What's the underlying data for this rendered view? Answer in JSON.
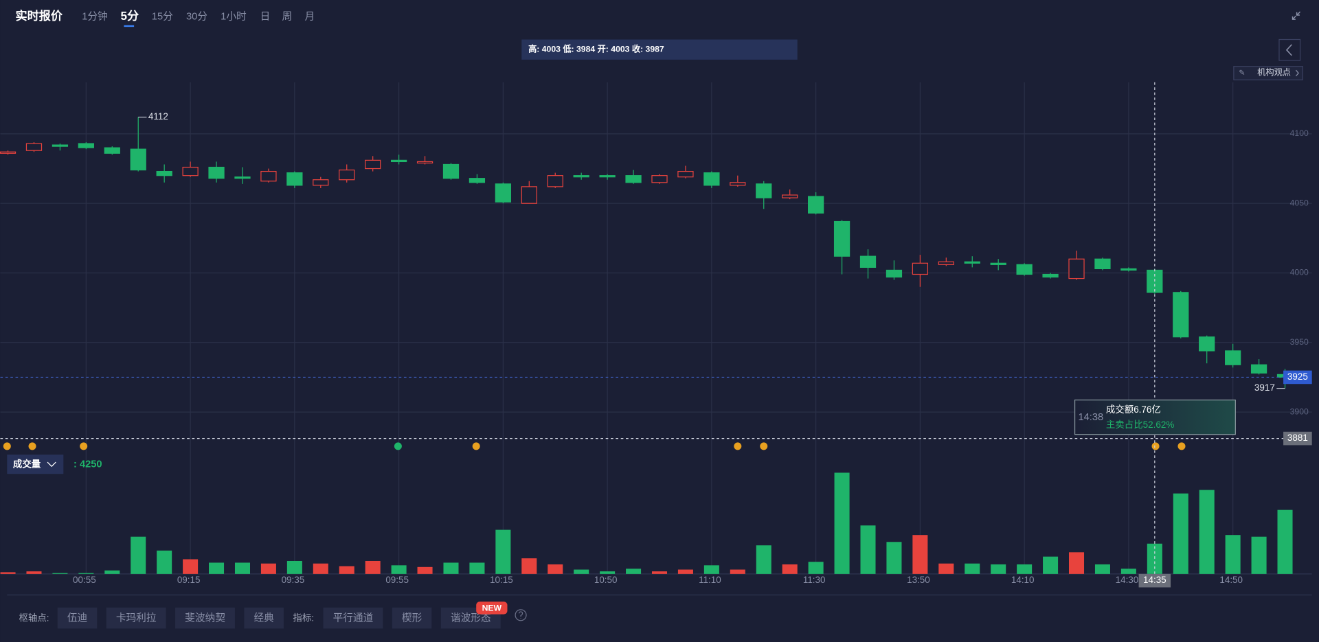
{
  "header": {
    "title": "实时报价",
    "tabs": [
      "1分钟",
      "5分",
      "15分",
      "30分",
      "1小时",
      "日",
      "周",
      "月"
    ],
    "active_tab": 1
  },
  "info_bar": "高: 4003 低: 3984 开: 4003 收: 3987",
  "side_tag": "机构观点",
  "chart_data": {
    "type": "candlestick",
    "categories": [
      null,
      null,
      null,
      "00:55",
      null,
      null,
      null,
      "09:15",
      null,
      null,
      null,
      "09:35",
      null,
      null,
      null,
      "09:55",
      null,
      null,
      null,
      "10:15",
      null,
      null,
      null,
      "10:50",
      null,
      null,
      null,
      "11:10",
      null,
      null,
      null,
      "11:30",
      null,
      null,
      null,
      "13:50",
      null,
      null,
      null,
      "14:10",
      null,
      null,
      null,
      "14:30",
      null,
      null,
      null,
      "14:50",
      null,
      null
    ],
    "open": [
      4086,
      4088,
      4092,
      4093,
      4090,
      4089,
      4073,
      4070,
      4076,
      4069,
      4066,
      4072,
      4063,
      4067,
      4075,
      4081,
      4079,
      4078,
      4068,
      4064,
      4050,
      4062,
      4070,
      4070,
      4070,
      4065,
      4069,
      4072,
      4063,
      4064,
      4054,
      4055,
      4037,
      4012,
      4002,
      3999,
      4006,
      4008,
      4007,
      4006,
      3999,
      3996,
      4010,
      4003,
      4002,
      3986,
      3954,
      3944,
      3934,
      3927
    ],
    "high": [
      4088,
      4094,
      4093,
      4094,
      4091,
      4112,
      4078,
      4080,
      4080,
      4076,
      4075,
      4073,
      4069,
      4078,
      4084,
      4085,
      4084,
      4079,
      4071,
      4065,
      4066,
      4072,
      4072,
      4071,
      4074,
      4071,
      4077,
      4073,
      4070,
      4066,
      4060,
      4058,
      4038,
      4017,
      4009,
      4013,
      4011,
      4012,
      4010,
      4007,
      4000,
      4016,
      4011,
      4004,
      4003,
      3987,
      3955,
      3949,
      3938,
      3931
    ],
    "low": [
      4085,
      4087,
      4088,
      4089,
      4085,
      4073,
      4065,
      4069,
      4065,
      4064,
      4065,
      4061,
      4061,
      4065,
      4073,
      4078,
      4078,
      4067,
      4064,
      4050,
      4050,
      4061,
      4067,
      4067,
      4064,
      4064,
      4068,
      4061,
      4062,
      4046,
      4053,
      4042,
      3999,
      3996,
      3995,
      3990,
      4005,
      4004,
      4002,
      3998,
      3996,
      3995,
      4002,
      4001,
      3985,
      3953,
      3935,
      3932,
      3927,
      3917
    ],
    "close": [
      4087,
      4093,
      4091,
      4090,
      4086,
      4074,
      4070,
      4076,
      4068,
      4068,
      4073,
      4063,
      4067,
      4074,
      4081,
      4080,
      4080,
      4068,
      4065,
      4051,
      4062,
      4070,
      4069,
      4069,
      4065,
      4070,
      4073,
      4063,
      4065,
      4054,
      4056,
      4043,
      4012,
      4004,
      3997,
      4007,
      4008,
      4007,
      4006,
      3999,
      3997,
      4010,
      4003,
      4002,
      3986,
      3954,
      3944,
      3934,
      3928,
      3925
    ],
    "up_color": "#e8433d",
    "down_color": "#1fb46a",
    "ylim": [
      3870,
      4137
    ],
    "yticks": [
      3900,
      3950,
      4000,
      4050,
      4100
    ],
    "grid": true,
    "crosshair": {
      "price": 3881,
      "time": "14:35"
    },
    "tooltip": {
      "time": "14:38",
      "amount": "成交额6.76亿",
      "ratio": "主卖占比52.62%"
    },
    "volume": {
      "title": "成交量",
      "readout": ": 4250",
      "values": [
        240,
        360,
        120,
        120,
        490,
        5220,
        3280,
        2060,
        1580,
        1580,
        1460,
        1820,
        1460,
        1090,
        1820,
        1210,
        970,
        1580,
        1580,
        6190,
        2190,
        1340,
        610,
        360,
        730,
        360,
        610,
        1210,
        610,
        4010,
        1340,
        1700,
        14200,
        6800,
        4490,
        5460,
        1460,
        1460,
        1340,
        1340,
        2430,
        3040,
        1340,
        730,
        4250,
        11290,
        11780,
        5460,
        5220,
        8980
      ],
      "ylim": [
        0,
        14500
      ]
    }
  },
  "toolbar": {
    "pivot_label": "枢轴点:",
    "pivot_buttons": [
      "伍迪",
      "卡玛利拉",
      "斐波纳契",
      "经典"
    ],
    "indicator_label": "指标:",
    "indicator_buttons": [
      "平行通道",
      "楔形",
      "谐波形态"
    ],
    "new_badge": "NEW"
  }
}
